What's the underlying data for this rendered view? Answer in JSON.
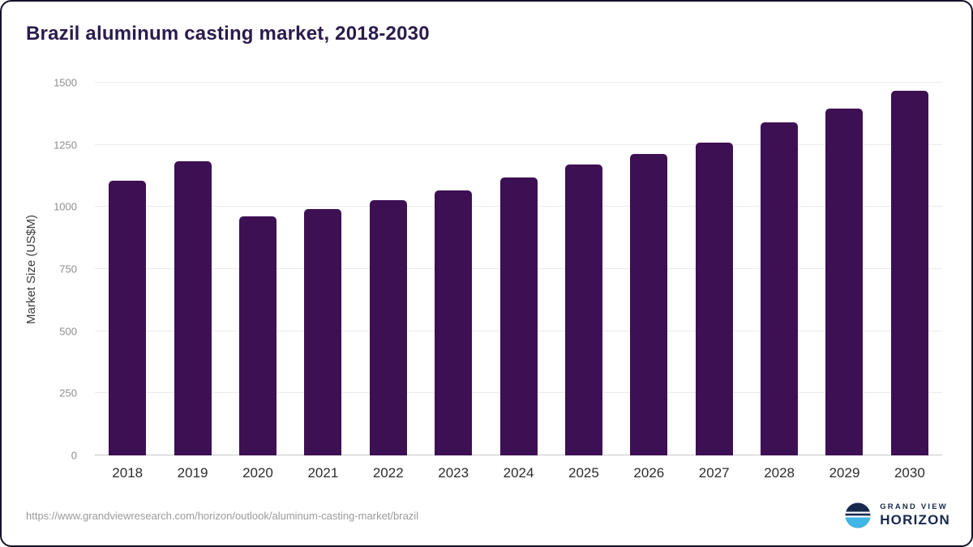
{
  "title": "Brazil aluminum casting market, 2018-2030",
  "chart_data": {
    "type": "bar",
    "title": "Brazil aluminum casting market, 2018-2030",
    "categories": [
      "2018",
      "2019",
      "2020",
      "2021",
      "2022",
      "2023",
      "2024",
      "2025",
      "2026",
      "2027",
      "2028",
      "2029",
      "2030"
    ],
    "values": [
      1105,
      1185,
      963,
      990,
      1028,
      1065,
      1118,
      1172,
      1212,
      1260,
      1340,
      1395,
      1468
    ],
    "xlabel": "",
    "ylabel": "Market Size (US$M)",
    "ylim": [
      0,
      1500
    ],
    "yticks": [
      0,
      250,
      500,
      750,
      1000,
      1250,
      1500
    ],
    "grid": true,
    "legend": false,
    "bar_color": "#3d1053"
  },
  "footer": {
    "source_url": "https://www.grandviewresearch.com/horizon/outlook/aluminum-casting-market/brazil",
    "logo_top": "GRAND VIEW",
    "logo_bottom": "HORIZON"
  },
  "colors": {
    "title": "#2b1b4c",
    "bar": "#3d1053",
    "logo_navy": "#17294d",
    "logo_teal": "#41b6e6"
  }
}
